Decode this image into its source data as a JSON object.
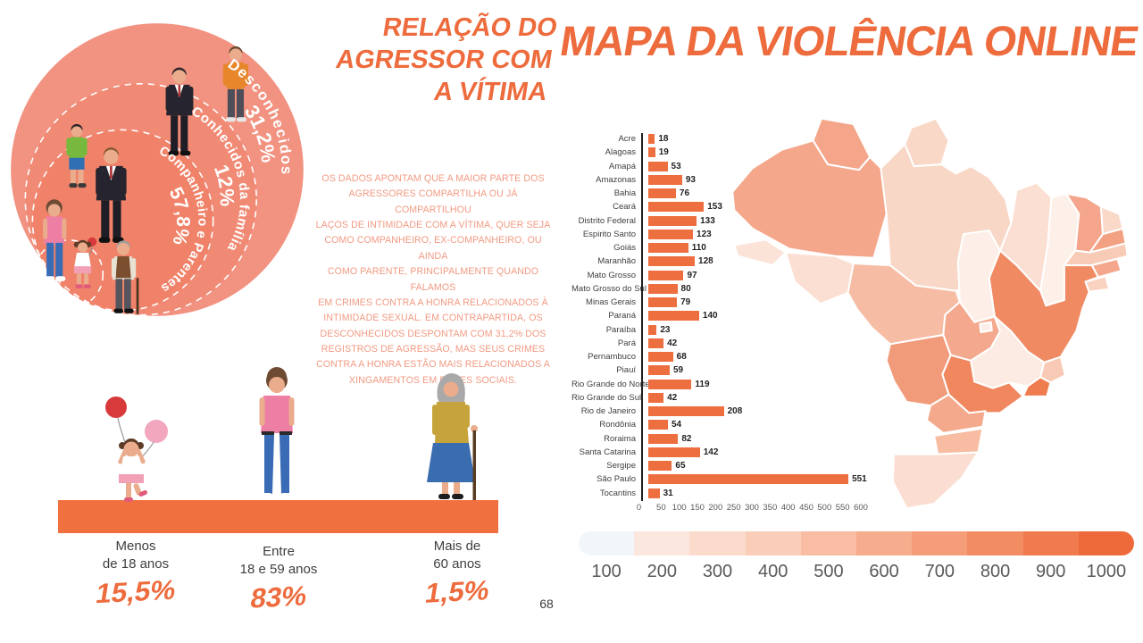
{
  "page_number": "68",
  "colors": {
    "accent": "#ed6b3c",
    "bar": "#ed6e3f",
    "body_text": "#f29a82",
    "platform": "#f0703f",
    "ring_outer": "#f29280",
    "ring_middle": "#f18a75",
    "ring_inner": "#f08269"
  },
  "relation_section": {
    "title": "RELAÇÃO DO\nAGRESSOR COM\nA VÍTIMA",
    "body": "OS DADOS APONTAM QUE A MAIOR PARTE DOS\nAGRESSORES COMPARTILHA OU JÁ COMPARTILHOU\nLAÇOS DE INTIMIDADE COM A VÍTIMA, QUER SEJA\nCOMO COMPANHEIRO, EX-COMPANHEIRO, OU AINDA\nCOMO PARENTE, PRINCIPALMENTE QUANDO FALAMOS\nEM CRIMES CONTRA A HONRA RELACIONADOS À\nINTIMIDADE SEXUAL. EM CONTRAPARTIDA, OS\nDESCONHECIDOS DESPONTAM COM 31,2% DOS\nREGISTROS DE AGRESSÃO, MAS SEUS CRIMES\nCONTRA A HONRA ESTÃO MAIS RELACIONADOS A\nXINGAMENTOS EM REDES SOCIAIS.",
    "rings": [
      {
        "label": "Desconhecidos",
        "value": "31,2%"
      },
      {
        "label": "Conhecidos da família",
        "value": "12%"
      },
      {
        "label": "Companheiro e Parentes",
        "value": "57,8%"
      }
    ]
  },
  "age_section": {
    "groups": [
      {
        "label": "Menos\nde 18  anos",
        "value": "15,5%"
      },
      {
        "label": "Entre\n18 e 59 anos",
        "value": "83%"
      },
      {
        "label": "Mais de\n60 anos",
        "value": "1,5%"
      }
    ]
  },
  "map_section": {
    "title": "MAPA DA VIOLÊNCIA ONLINE",
    "legend_labels": [
      "100",
      "200",
      "300",
      "400",
      "500",
      "600",
      "700",
      "800",
      "900",
      "1000"
    ],
    "legend_colors": [
      "#f2f5fa",
      "#fbe7de",
      "#fbdbcc",
      "#f9cdb8",
      "#f8bda2",
      "#f6ad8d",
      "#f49d78",
      "#f28c62",
      "#f07b4e",
      "#ee6a3a"
    ],
    "state_colors": {
      "RR": "#f5a68a",
      "AP": "#fad8c7",
      "AM": "#f5a78c",
      "AC": "#fbe3d8",
      "RO": "#fbdfd2",
      "PA": "#f9d7c6",
      "MA": "#fbdfd3",
      "PI": "#fdf0e9",
      "CE": "#f4a58b",
      "RN": "#fbd9c9",
      "PB": "#f3a183",
      "PE": "#f8cbb6",
      "AL": "#f4a78c",
      "SE": "#f9d2c0",
      "BA": "#f08a62",
      "TO": "#fdefe7",
      "GO": "#f4a98e",
      "DF": "#fdefe7",
      "MG": "#fcebe2",
      "ES": "#f8c9b4",
      "RJ": "#ef7c4e",
      "SP": "#f0875e",
      "MS": "#f29b7a",
      "MT": "#f7bca4",
      "PR": "#f5a98c",
      "SC": "#f7bca1",
      "RS": "#fbded1"
    }
  },
  "chart_data": {
    "type": "bar",
    "orientation": "horizontal",
    "title": "MAPA DA VIOLÊNCIA ONLINE",
    "categories": [
      "Acre",
      "Alagoas",
      "Amapá",
      "Amazonas",
      "Bahia",
      "Ceará",
      "Distrito Federal",
      "Espirito Santo",
      "Goiás",
      "Maranhão",
      "Mato Grosso",
      "Mato Grosso do Sul",
      "Minas Gerais",
      "Paraná",
      "Paraíba",
      "Pará",
      "Pernambuco",
      "Piauí",
      "Rio Grande do Norte",
      "Rio Grande do Sul",
      "Rio de Janeiro",
      "Rondônia",
      "Roraima",
      "Santa Catarina",
      "Sergipe",
      "São Paulo",
      "Tocantins"
    ],
    "values": [
      18,
      19,
      53,
      93,
      76,
      153,
      133,
      123,
      110,
      128,
      97,
      80,
      79,
      140,
      23,
      42,
      68,
      59,
      119,
      42,
      208,
      54,
      82,
      142,
      65,
      551,
      31
    ],
    "xlim": [
      0,
      600
    ],
    "x_ticks": [
      0,
      50,
      100,
      150,
      200,
      250,
      300,
      350,
      400,
      450,
      500,
      550,
      600
    ],
    "bar_color": "#ed6e3f",
    "grid": false
  }
}
